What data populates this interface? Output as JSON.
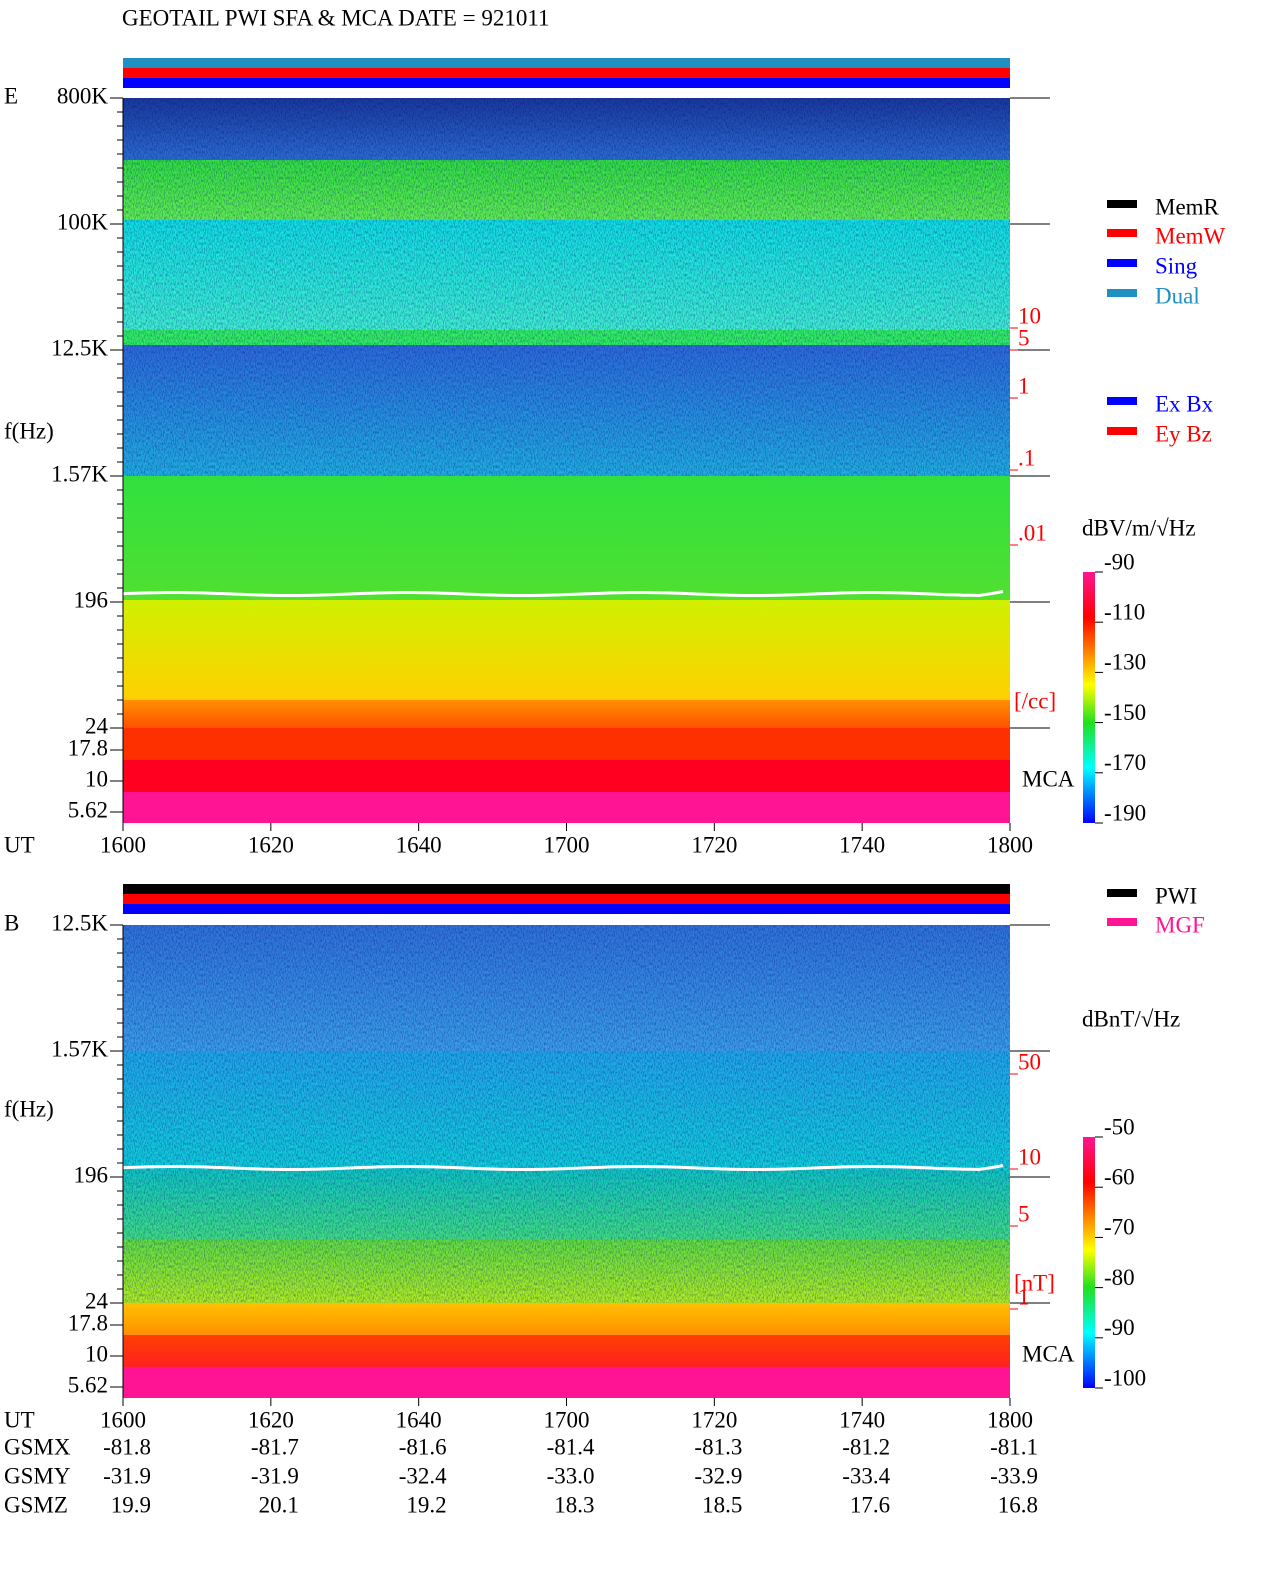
{
  "title": "GEOTAIL  PWI SFA & MCA   DATE = 921011",
  "xlabel": "UT",
  "xticks": [
    "1600",
    "1620",
    "1640",
    "1700",
    "1720",
    "1740",
    "1800"
  ],
  "panels": [
    {
      "label": "E",
      "ylabel": "f(Hz)",
      "yticks": [
        "800K",
        "100K",
        "12.5K",
        "1.57K",
        "196",
        "24",
        "17.8",
        "10",
        "5.62"
      ],
      "mca": "MCA",
      "unit": "dBV/m/√Hz",
      "colorbar": [
        "-90",
        "-110",
        "-130",
        "-150",
        "-170",
        "-190"
      ],
      "side_ticks": [
        "10",
        "5",
        "1",
        ".1",
        ".01"
      ],
      "side_unit": "[/cc]",
      "legends": [
        [
          {
            "name": "MemR",
            "color": "#000000"
          },
          {
            "name": "MemW",
            "color": "#ff0000"
          },
          {
            "name": "Sing",
            "color": "#0000ff"
          },
          {
            "name": "Dual",
            "color": "#2090c0"
          }
        ],
        [
          {
            "name": "Ex Bx",
            "color": "#0000ff"
          },
          {
            "name": "Ey Bz",
            "color": "#ff0000"
          }
        ]
      ]
    },
    {
      "label": "B",
      "ylabel": "f(Hz)",
      "yticks": [
        "12.5K",
        "1.57K",
        "196",
        "24",
        "17.8",
        "10",
        "5.62"
      ],
      "mca": "MCA",
      "unit": "dBnT/√Hz",
      "colorbar": [
        "-50",
        "-60",
        "-70",
        "-80",
        "-90",
        "-100"
      ],
      "side_ticks": [
        "50",
        "10",
        "5",
        "1"
      ],
      "side_unit": "[nT]",
      "legends": [
        [
          {
            "name": "PWI",
            "color": "#000000"
          },
          {
            "name": "MGF",
            "color": "#ff1493"
          }
        ]
      ]
    }
  ],
  "ephemeris": [
    {
      "label": "GSMX",
      "values": [
        "-81.8",
        "-81.7",
        "-81.6",
        "-81.4",
        "-81.3",
        "-81.2",
        "-81.1"
      ]
    },
    {
      "label": "GSMY",
      "values": [
        "-31.9",
        "-31.9",
        "-32.4",
        "-33.0",
        "-32.9",
        "-33.4",
        "-33.9"
      ]
    },
    {
      "label": "GSMZ",
      "values": [
        "19.9",
        "20.1",
        "19.2",
        "18.3",
        "18.5",
        "17.6",
        "16.8"
      ]
    }
  ]
}
